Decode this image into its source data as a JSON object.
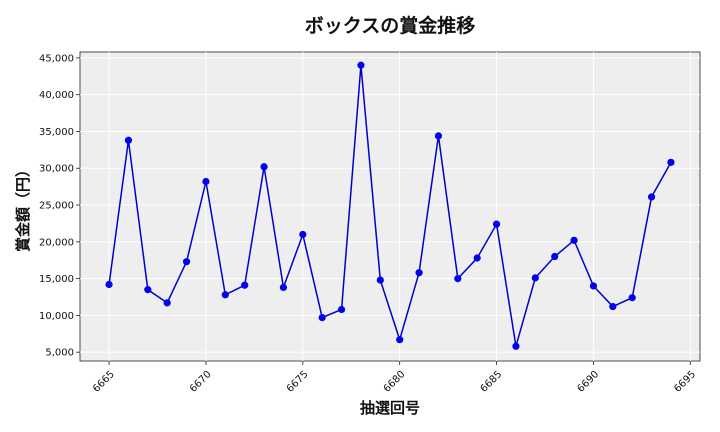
{
  "chart_data": {
    "type": "line",
    "title": "ボックスの賞金推移",
    "xlabel": "抽選回号",
    "ylabel": "賞金額（円）",
    "x": [
      6665,
      6666,
      6667,
      6668,
      6669,
      6670,
      6671,
      6672,
      6673,
      6674,
      6675,
      6676,
      6677,
      6678,
      6679,
      6680,
      6681,
      6682,
      6683,
      6684,
      6685,
      6686,
      6687,
      6688,
      6689,
      6690,
      6691,
      6692,
      6693,
      6694
    ],
    "series": [
      {
        "values": [
          14200,
          33800,
          13500,
          11700,
          17300,
          28200,
          12800,
          14100,
          30200,
          13800,
          21000,
          9700,
          10800,
          44000,
          14800,
          6700,
          15800,
          34400,
          15000,
          17800,
          22400,
          5800,
          15100,
          18000,
          20200,
          14000,
          11200,
          12400,
          26100,
          30800
        ]
      }
    ],
    "xlim": [
      6663.5,
      6695.5
    ],
    "ylim": [
      3800,
      45800
    ],
    "x_ticks": [
      6665,
      6670,
      6675,
      6680,
      6685,
      6690,
      6695
    ],
    "y_ticks": [
      5000,
      10000,
      15000,
      20000,
      25000,
      30000,
      35000,
      40000,
      45000
    ],
    "x_tick_labels": [
      "6665",
      "6670",
      "6675",
      "6680",
      "6685",
      "6690",
      "6695"
    ],
    "y_tick_labels": [
      "5,000",
      "10,000",
      "15,000",
      "20,000",
      "25,000",
      "30,000",
      "35,000",
      "40,000",
      "45,000"
    ],
    "grid": true,
    "colors": {
      "line": "#0000cc",
      "marker": "#0000ee",
      "plot_bg": "#eeeeee",
      "grid": "#ffffff"
    }
  }
}
